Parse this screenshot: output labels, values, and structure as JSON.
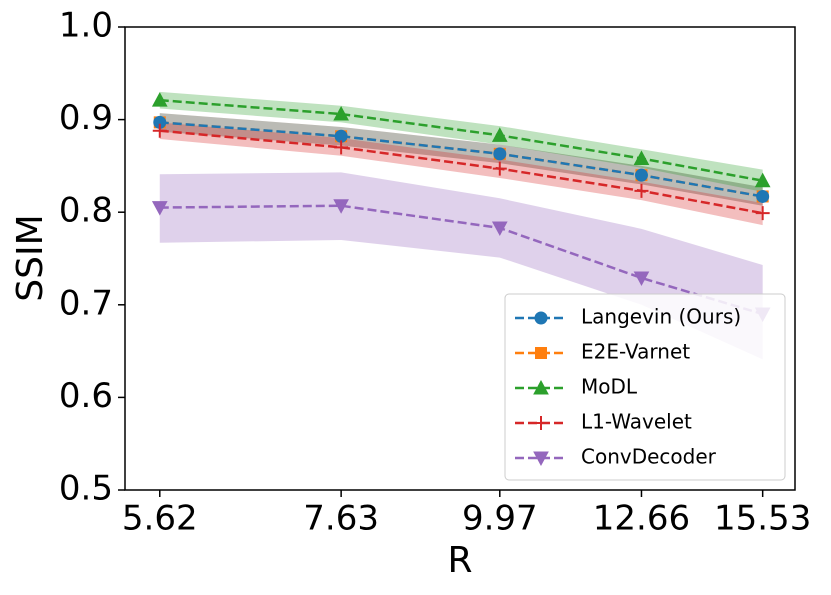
{
  "chart_data": {
    "type": "line",
    "xlabel": "R",
    "ylabel": "SSIM",
    "xscale": "log",
    "xlim": [
      5.3,
      16.4
    ],
    "xticks": [
      5.62,
      7.63,
      9.97,
      12.66,
      15.53
    ],
    "ylim": [
      0.5,
      1.0
    ],
    "yticks": [
      0.5,
      0.6,
      0.7,
      0.8,
      0.9,
      {
        "value": 1.0,
        "label": "1.0"
      }
    ],
    "x": [
      5.62,
      7.63,
      9.97,
      12.66,
      15.53
    ],
    "legend": "lower right",
    "series": [
      {
        "name": "E2E-Varnet",
        "color": "#ff7f0e",
        "marker": "square",
        "values": [
          0.897,
          0.882,
          0.863,
          0.84,
          0.817
        ],
        "upper": [
          0.907,
          0.892,
          0.873,
          0.85,
          0.827
        ],
        "lower": [
          0.887,
          0.872,
          0.853,
          0.83,
          0.807
        ]
      },
      {
        "name": "Langevin (Ours)",
        "color": "#1f77b4",
        "marker": "circle",
        "values": [
          0.897,
          0.882,
          0.863,
          0.84,
          0.817
        ],
        "upper": [
          0.907,
          0.892,
          0.873,
          0.85,
          0.827
        ],
        "lower": [
          0.887,
          0.872,
          0.853,
          0.83,
          0.807
        ]
      },
      {
        "name": "MoDL",
        "color": "#2ca02c",
        "marker": "triangle-up",
        "values": [
          0.921,
          0.906,
          0.883,
          0.858,
          0.834
        ],
        "upper": [
          0.93,
          0.915,
          0.893,
          0.868,
          0.846
        ],
        "lower": [
          0.912,
          0.897,
          0.873,
          0.848,
          0.822
        ]
      },
      {
        "name": "L1-Wavelet",
        "color": "#d62728",
        "marker": "plus",
        "values": [
          0.888,
          0.87,
          0.847,
          0.823,
          0.799
        ],
        "upper": [
          0.897,
          0.88,
          0.857,
          0.833,
          0.81
        ],
        "lower": [
          0.879,
          0.861,
          0.837,
          0.813,
          0.786
        ]
      },
      {
        "name": "ConvDecoder",
        "color": "#9467bd",
        "marker": "triangle-down",
        "values": [
          0.805,
          0.807,
          0.783,
          0.729,
          0.69
        ],
        "upper": [
          0.841,
          0.843,
          0.815,
          0.782,
          0.743
        ],
        "lower": [
          0.767,
          0.77,
          0.751,
          0.7,
          0.641
        ]
      }
    ],
    "legend_order": [
      1,
      0,
      2,
      3,
      4
    ]
  }
}
